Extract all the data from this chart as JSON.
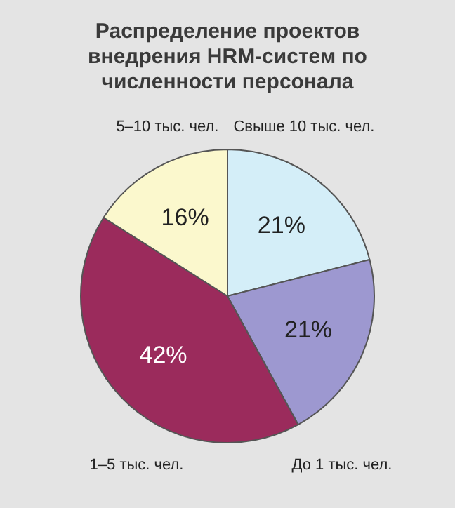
{
  "chart_data": {
    "type": "pie",
    "title": "Распределение проектов внедрения HRM-систем по численности персонала",
    "categories": [
      "Свыше 10 тыс. чел.",
      "До 1 тыс. чел.",
      "1–5 тыс. чел.",
      "5–10 тыс. чел."
    ],
    "values": [
      21,
      21,
      42,
      16
    ],
    "colors": [
      "#d4eef8",
      "#9d98d0",
      "#9b2b5c",
      "#fbf8cd"
    ],
    "value_labels": [
      "21%",
      "21%",
      "42%",
      "16%"
    ],
    "legend": false
  }
}
